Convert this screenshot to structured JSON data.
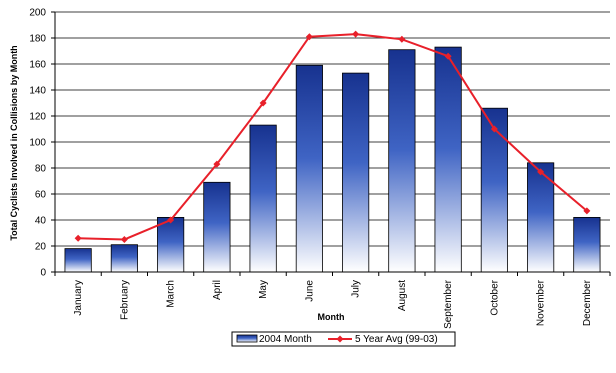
{
  "chart_data": {
    "type": "bar",
    "title": "",
    "xlabel": "Month",
    "ylabel": "Total Cyclists Involved in Collisions by Month",
    "ylim": [
      0,
      200
    ],
    "yticks": [
      0,
      20,
      40,
      60,
      80,
      100,
      120,
      140,
      160,
      180,
      200
    ],
    "categories": [
      "January",
      "February",
      "March",
      "April",
      "May",
      "June",
      "July",
      "August",
      "September",
      "October",
      "November",
      "December"
    ],
    "grid": true,
    "legend_position": "bottom",
    "series": [
      {
        "name": "2004 Month",
        "kind": "bar",
        "color": "#1a3a9c",
        "values": [
          18,
          21,
          42,
          69,
          113,
          159,
          153,
          171,
          173,
          126,
          84,
          42
        ]
      },
      {
        "name": "5 Year Avg (99-03)",
        "kind": "line",
        "color": "#e8202a",
        "values": [
          26,
          25,
          40,
          83,
          130,
          181,
          183,
          179,
          166,
          110,
          77,
          47
        ]
      }
    ]
  }
}
